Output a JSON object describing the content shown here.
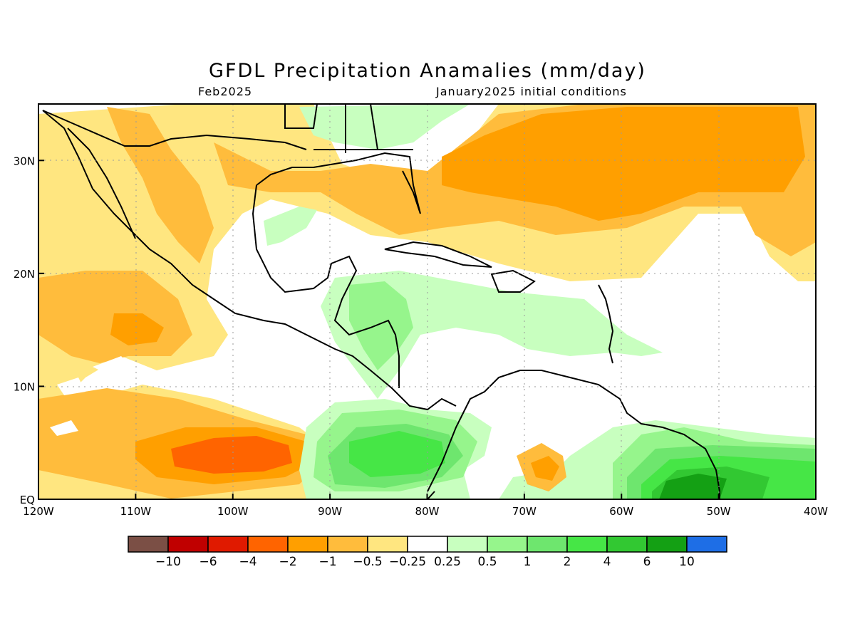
{
  "title": "GFDL Precipitation Anamalies (mm/day)",
  "subtitle_left": "Feb2025",
  "subtitle_right": "January2025 initial conditions",
  "map": {
    "lon_range": [
      -120,
      -40
    ],
    "lat_range": [
      0,
      35
    ],
    "x_ticks": [
      {
        "value": -120,
        "label": "120W"
      },
      {
        "value": -110,
        "label": "110W"
      },
      {
        "value": -100,
        "label": "100W"
      },
      {
        "value": -90,
        "label": "90W"
      },
      {
        "value": -80,
        "label": "80W"
      },
      {
        "value": -70,
        "label": "70W"
      },
      {
        "value": -60,
        "label": "60W"
      },
      {
        "value": -50,
        "label": "50W"
      },
      {
        "value": -40,
        "label": "40W"
      }
    ],
    "y_ticks": [
      {
        "value": 0,
        "label": "EQ"
      },
      {
        "value": 10,
        "label": "10N"
      },
      {
        "value": 20,
        "label": "20N"
      },
      {
        "value": 30,
        "label": "30N"
      }
    ]
  },
  "colorbar": {
    "colors": [
      "#7b4f45",
      "#c00000",
      "#e01a00",
      "#ff6400",
      "#ff9f00",
      "#ffbc3c",
      "#ffe680",
      "#ffffff",
      "#c8ffbf",
      "#96f58c",
      "#6ee66e",
      "#46e646",
      "#32c832",
      "#14a014",
      "#1e6ee6"
    ],
    "labels": [
      "−10",
      "−6",
      "−4",
      "−2",
      "−1",
      "−0.5",
      "−0.25",
      "0.25",
      "0.5",
      "1",
      "2",
      "4",
      "6",
      "10"
    ]
  },
  "colors": {
    "gridline": "#9a9a9a",
    "coastline": "#000000"
  }
}
